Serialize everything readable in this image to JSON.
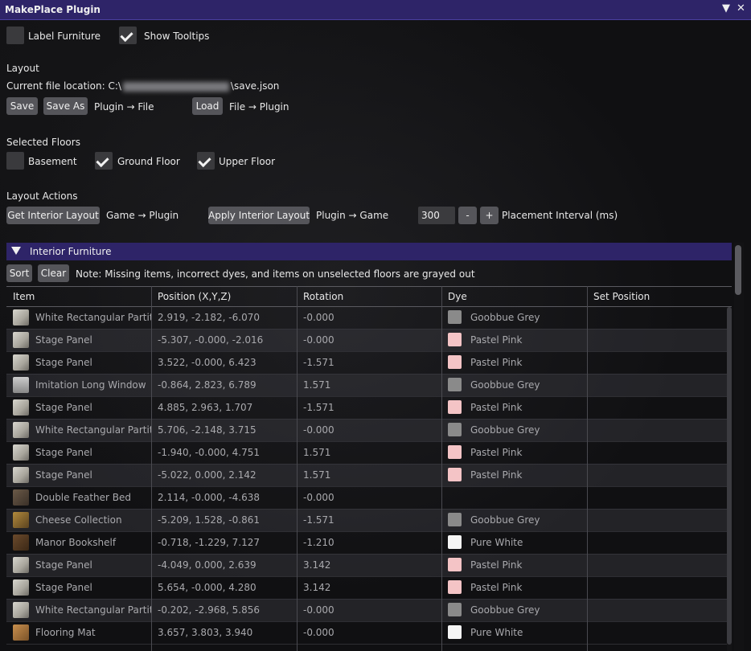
{
  "window": {
    "title": "MakePlace Plugin",
    "collapse_glyph": "▼",
    "close_glyph": "✕"
  },
  "options": {
    "label_furniture": "Label Furniture",
    "show_tooltips": "Show Tooltips"
  },
  "layout": {
    "heading": "Layout",
    "file_location_prefix": "Current file location: C:\\",
    "file_location_suffix": "\\save.json",
    "save": "Save",
    "save_as": "Save As",
    "save_hint": "Plugin → File",
    "load": "Load",
    "load_hint": "File → Plugin"
  },
  "floors": {
    "heading": "Selected Floors",
    "basement": "Basement",
    "ground": "Ground Floor",
    "upper": "Upper Floor"
  },
  "actions": {
    "heading": "Layout Actions",
    "get_interior": "Get Interior Layout",
    "get_hint": "Game → Plugin",
    "apply_interior": "Apply Interior Layout",
    "apply_hint": "Plugin → Game",
    "interval_value": "300",
    "minus": "-",
    "plus": "+",
    "interval_label": "Placement Interval (ms)"
  },
  "furniture": {
    "heading": "Interior Furniture",
    "sort": "Sort",
    "clear": "Clear",
    "note": "Note: Missing items, incorrect dyes, and items on unselected floors are grayed out",
    "columns": [
      "Item",
      "Position (X,Y,Z)",
      "Rotation",
      "Dye",
      "Set Position"
    ],
    "rows": [
      {
        "item": "White Rectangular Partiti",
        "pos": "2.919, -2.182, -6.070",
        "rot": "-0.000",
        "dye": "Goobbue Grey",
        "dye_color": "#8a8a8a",
        "icon": "panel"
      },
      {
        "item": "Stage Panel",
        "pos": "-5.307, -0.000, -2.016",
        "rot": "-0.000",
        "dye": "Pastel Pink",
        "dye_color": "#f4c4c6",
        "icon": "panel"
      },
      {
        "item": "Stage Panel",
        "pos": "3.522, -0.000, 6.423",
        "rot": "-1.571",
        "dye": "Pastel Pink",
        "dye_color": "#f4c4c6",
        "icon": "panel"
      },
      {
        "item": "Imitation Long Window",
        "pos": "-0.864, 2.823, 6.789",
        "rot": "1.571",
        "dye": "Goobbue Grey",
        "dye_color": "#8a8a8a",
        "icon": "window"
      },
      {
        "item": "Stage Panel",
        "pos": "4.885, 2.963, 1.707",
        "rot": "-1.571",
        "dye": "Pastel Pink",
        "dye_color": "#f4c4c6",
        "icon": "panel"
      },
      {
        "item": "White Rectangular Partiti",
        "pos": "5.706, -2.148, 3.715",
        "rot": "-0.000",
        "dye": "Goobbue Grey",
        "dye_color": "#8a8a8a",
        "icon": "panel"
      },
      {
        "item": "Stage Panel",
        "pos": "-1.940, -0.000, 4.751",
        "rot": "1.571",
        "dye": "Pastel Pink",
        "dye_color": "#f4c4c6",
        "icon": "panel"
      },
      {
        "item": "Stage Panel",
        "pos": "-5.022, 0.000, 2.142",
        "rot": "1.571",
        "dye": "Pastel Pink",
        "dye_color": "#f4c4c6",
        "icon": "panel"
      },
      {
        "item": "Double Feather Bed",
        "pos": "2.114, -0.000, -4.638",
        "rot": "-0.000",
        "dye": "",
        "dye_color": "",
        "icon": "bed"
      },
      {
        "item": "Cheese Collection",
        "pos": "-5.209, 1.528, -0.861",
        "rot": "-1.571",
        "dye": "Goobbue Grey",
        "dye_color": "#8a8a8a",
        "icon": "cheese"
      },
      {
        "item": "Manor Bookshelf",
        "pos": "-0.718, -1.229, 7.127",
        "rot": "-1.210",
        "dye": "Pure White",
        "dye_color": "#f5f5f5",
        "icon": "shelf"
      },
      {
        "item": "Stage Panel",
        "pos": "-4.049, 0.000, 2.639",
        "rot": "3.142",
        "dye": "Pastel Pink",
        "dye_color": "#f4c4c6",
        "icon": "panel"
      },
      {
        "item": "Stage Panel",
        "pos": "5.654, -0.000, 4.280",
        "rot": "3.142",
        "dye": "Pastel Pink",
        "dye_color": "#f4c4c6",
        "icon": "panel"
      },
      {
        "item": "White Rectangular Partiti",
        "pos": "-0.202, -2.968, 5.856",
        "rot": "-0.000",
        "dye": "Goobbue Grey",
        "dye_color": "#8a8a8a",
        "icon": "panel"
      },
      {
        "item": "Flooring Mat",
        "pos": "3.657, 3.803, 3.940",
        "rot": "-0.000",
        "dye": "Pure White",
        "dye_color": "#f5f5f5",
        "icon": "mat"
      }
    ]
  }
}
